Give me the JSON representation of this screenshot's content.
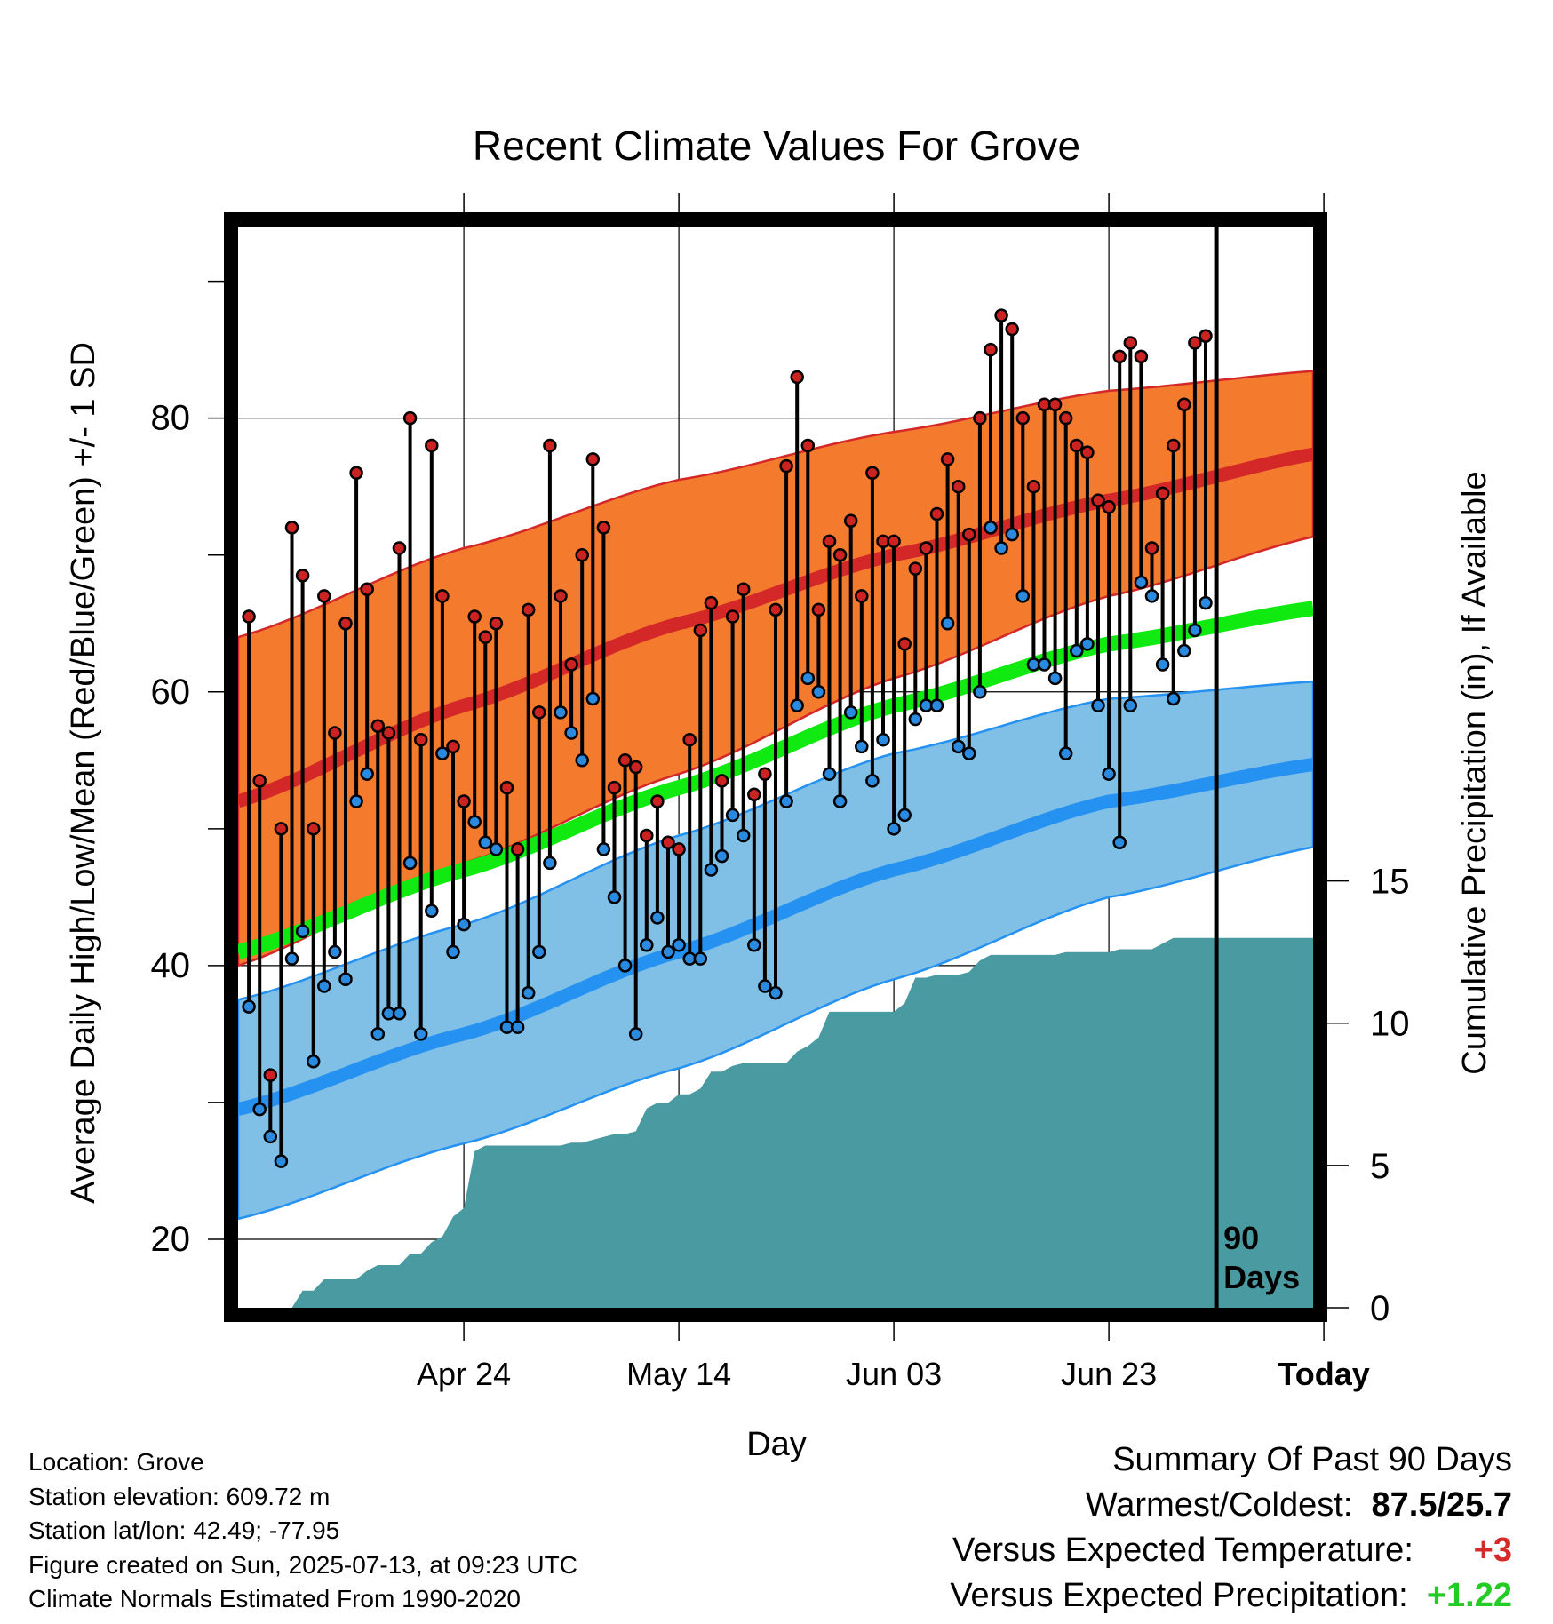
{
  "chart_data": {
    "type": "line",
    "title": "Recent Climate Values For Grove",
    "xlabel": "Day",
    "ylabel_left": "Average Daily High/Low/Mean (Red/Blue/Green) +/- 1 SD",
    "ylabel_right": "Cumulative Precipitation (in), If Available",
    "x_tick_labels": [
      "Apr 24",
      "May 14",
      "Jun 03",
      "Jun 23",
      "Today"
    ],
    "y_ticks": [
      20,
      40,
      60,
      80
    ],
    "y2_ticks": [
      0,
      5,
      10,
      15
    ],
    "ylim": [
      15,
      94
    ],
    "y2lim": [
      0,
      38
    ],
    "xlim_days": [
      -91,
      9
    ],
    "today_marker_label": [
      "90",
      "Days"
    ],
    "colors": {
      "high_band": "#f47a2e",
      "high_mean": "#d42828",
      "low_band": "#80bfe6",
      "low_mean": "#2592f2",
      "mean_line": "#11ea11",
      "precip": "#4a9aa2",
      "high_dot": "#cc2222",
      "low_dot": "#2a8ae0"
    },
    "normals": {
      "x_days": [
        -91,
        -70,
        -50,
        -30,
        -10,
        10
      ],
      "high_mean": [
        52,
        59,
        65,
        70,
        74,
        77.5
      ],
      "high_upper": [
        64,
        70.5,
        75.5,
        79,
        82,
        83.5
      ],
      "high_lower": [
        40,
        47.5,
        54,
        61,
        67,
        71.5
      ],
      "low_mean": [
        29.5,
        35,
        41,
        47,
        52,
        54.8
      ],
      "low_upper": [
        37.5,
        43,
        49.5,
        55.5,
        59.5,
        60.8
      ],
      "low_lower": [
        21.5,
        27,
        32.5,
        39,
        45,
        48.8
      ],
      "avg_mean": [
        41,
        47,
        53,
        59,
        63.5,
        66.2
      ]
    },
    "observations": {
      "day_offset": [
        -90,
        -89,
        -88,
        -87,
        -86,
        -85,
        -84,
        -83,
        -82,
        -81,
        -80,
        -79,
        -78,
        -77,
        -76,
        -75,
        -74,
        -73,
        -72,
        -71,
        -70,
        -69,
        -68,
        -67,
        -66,
        -65,
        -64,
        -63,
        -62,
        -61,
        -60,
        -59,
        -58,
        -57,
        -56,
        -55,
        -54,
        -53,
        -52,
        -51,
        -50,
        -49,
        -48,
        -47,
        -46,
        -45,
        -44,
        -43,
        -42,
        -41,
        -40,
        -39,
        -38,
        -37,
        -36,
        -35,
        -34,
        -33,
        -32,
        -31,
        -30,
        -29,
        -28,
        -27,
        -26,
        -25,
        -24,
        -23,
        -22,
        -21,
        -20,
        -19,
        -18,
        -17,
        -16,
        -15,
        -14,
        -13,
        -12,
        -11,
        -10,
        -9,
        -8,
        -7,
        -6,
        -5,
        -4,
        -3,
        -2,
        -1
      ],
      "high": [
        65.5,
        53.5,
        32,
        50,
        72,
        68.5,
        50,
        67,
        57,
        65,
        76,
        67.5,
        57.5,
        57,
        70.5,
        80,
        56.5,
        78,
        67,
        56,
        52,
        65.5,
        64,
        65,
        53,
        48.5,
        66,
        58.5,
        78,
        67,
        62,
        70,
        77,
        72,
        53,
        55,
        54.5,
        49.5,
        52,
        49,
        48.5,
        56.5,
        64.5,
        66.5,
        53.5,
        65.5,
        67.5,
        52.5,
        54,
        66,
        76.5,
        83,
        78,
        66,
        71,
        70,
        72.5,
        67,
        76,
        71,
        71,
        63.5,
        69,
        70.5,
        73,
        77,
        75,
        71.5,
        80,
        85,
        87.5,
        86.5,
        80,
        75,
        81,
        81,
        80,
        78,
        77.5,
        74,
        73.5,
        84.5,
        85.5,
        84.5,
        70.5,
        74.5,
        78,
        81,
        85.5,
        86
      ],
      "low": [
        37,
        29.5,
        27.5,
        25.7,
        40.5,
        42.5,
        33,
        38.5,
        41,
        39,
        52,
        54,
        35,
        36.5,
        36.5,
        47.5,
        35,
        44,
        55.5,
        41,
        43,
        50.5,
        49,
        48.5,
        35.5,
        35.5,
        38,
        41,
        47.5,
        58.5,
        57,
        55,
        59.5,
        48.5,
        45,
        40,
        35,
        41.5,
        43.5,
        41,
        41.5,
        40.5,
        40.5,
        47,
        48,
        51,
        49.5,
        41.5,
        38.5,
        38,
        52,
        59,
        61,
        60,
        54,
        52,
        58.5,
        56,
        53.5,
        56.5,
        50,
        51,
        58,
        59,
        59,
        65,
        56,
        55.5,
        60,
        72,
        70.5,
        71.5,
        67,
        62,
        62,
        61,
        55.5,
        63,
        63.5,
        59,
        54,
        49,
        59,
        68,
        67,
        62,
        59.5,
        63,
        64.5,
        66.5
      ]
    },
    "precip_cumulative": {
      "x_days": [
        -86,
        -85,
        -84,
        -83,
        -82,
        -81,
        -80,
        -79,
        -78,
        -77,
        -76,
        -75,
        -74,
        -73,
        -72,
        -71,
        -70,
        -69,
        -68,
        -67,
        -66,
        -65,
        -64,
        -63,
        -62,
        -61,
        -60,
        -59,
        -58,
        -57,
        -56,
        -55,
        -54,
        -53,
        -52,
        -51,
        -50,
        -49,
        -48,
        -47,
        -46,
        -45,
        -44,
        -43,
        -42,
        -41,
        -40,
        -39,
        -38,
        -37,
        -36,
        -35,
        -34,
        -33,
        -32,
        -31,
        -30,
        -29,
        -28,
        -27,
        -26,
        -25,
        -24,
        -23,
        -22,
        -21,
        -20,
        -19,
        -18,
        -17,
        -16,
        -15,
        -14,
        -13,
        -12,
        -11,
        -10,
        -9,
        -8,
        -7,
        -6,
        -5,
        -4,
        -3,
        -2,
        -1,
        0,
        9
      ],
      "values": [
        0,
        0.6,
        0.6,
        1.0,
        1.0,
        1.0,
        1.0,
        1.3,
        1.5,
        1.5,
        1.5,
        1.9,
        1.9,
        2.3,
        2.5,
        3.2,
        3.5,
        5.5,
        5.7,
        5.7,
        5.7,
        5.7,
        5.7,
        5.7,
        5.7,
        5.7,
        5.8,
        5.8,
        5.9,
        6.0,
        6.1,
        6.1,
        6.2,
        7.0,
        7.2,
        7.2,
        7.5,
        7.5,
        7.7,
        8.3,
        8.3,
        8.5,
        8.6,
        8.6,
        8.6,
        8.6,
        8.6,
        9.0,
        9.2,
        9.5,
        10.4,
        10.4,
        10.4,
        10.4,
        10.4,
        10.4,
        10.4,
        10.7,
        11.6,
        11.6,
        11.7,
        11.7,
        11.7,
        11.8,
        12.2,
        12.4,
        12.4,
        12.4,
        12.4,
        12.4,
        12.4,
        12.4,
        12.5,
        12.5,
        12.5,
        12.5,
        12.5,
        12.6,
        12.6,
        12.6,
        12.6,
        12.8,
        13.0,
        13.0,
        13.0,
        13.0,
        13.0,
        13.0
      ]
    }
  },
  "info": {
    "location": "Location: Grove",
    "elevation": "Station elevation: 609.72 m",
    "latlon": "Station lat/lon: 42.49; -77.95",
    "created": "Figure created on Sun, 2025-07-13, at 09:23 UTC",
    "normals": "Climate Normals Estimated From 1990-2020"
  },
  "summary": {
    "title": "Summary Of Past 90 Days",
    "warm_cold_label": "Warmest/Coldest:",
    "warm_cold_value": "87.5/25.7",
    "temp_label": "Versus Expected Temperature:",
    "temp_value": "+3",
    "precip_label": "Versus Expected Precipitation:",
    "precip_value": "+1.22"
  }
}
